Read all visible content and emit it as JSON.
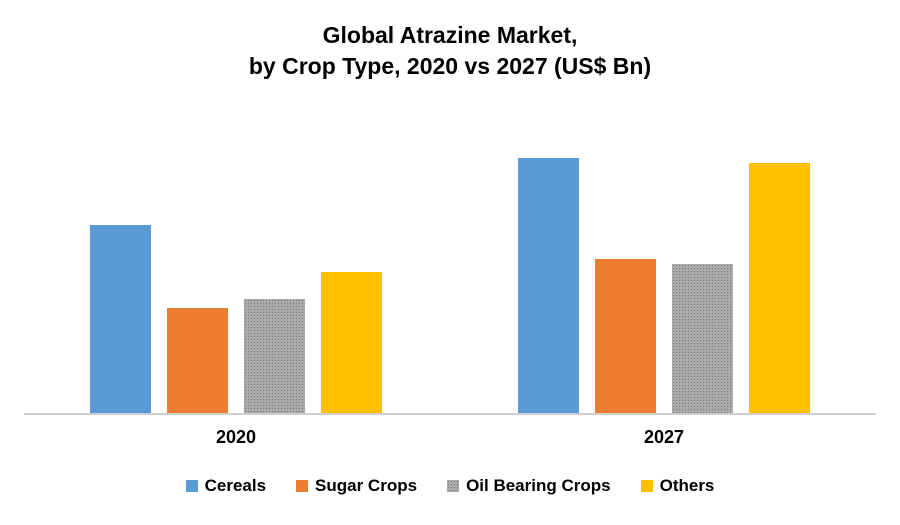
{
  "title": {
    "line1": "Global Atrazine Market,",
    "line2": "by Crop Type, 2020 vs 2027 (US$ Bn)"
  },
  "chart_data": {
    "type": "bar",
    "title": "Global Atrazine Market, by Crop Type, 2020 vs 2027 (US$ Bn)",
    "categories": [
      "2020",
      "2027"
    ],
    "series": [
      {
        "name": "Cereals",
        "color": "#5B9BD5",
        "pattern": "solid",
        "values": [
          1.88,
          2.55
        ]
      },
      {
        "name": "Sugar Crops",
        "color": "#ED7D31",
        "pattern": "solid",
        "values": [
          1.05,
          1.54
        ]
      },
      {
        "name": "Oil Bearing Crops",
        "color": "#ABABAB",
        "pattern": "dotted",
        "values": [
          1.14,
          1.49
        ]
      },
      {
        "name": "Others",
        "color": "#FFC000",
        "pattern": "solid",
        "values": [
          1.41,
          2.5
        ]
      }
    ],
    "xlabel": "",
    "ylabel": "",
    "ylim": [
      0,
      2.6
    ],
    "yaxis_visible": false,
    "gridlines": false,
    "data_labels": false,
    "legend_position": "bottom",
    "values_note": "No y-axis or data labels shown in image; values estimated from relative bar heights (arbitrary US$ Bn scale)"
  },
  "colors": {
    "background": "#ffffff",
    "axis_line": "#cfcfcf",
    "text": "#000000"
  }
}
